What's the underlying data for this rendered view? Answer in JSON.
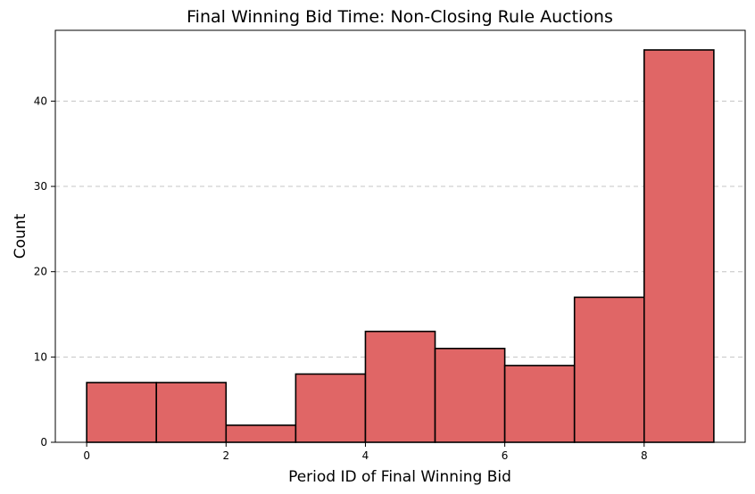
{
  "chart_data": {
    "type": "bar",
    "title": "Final Winning Bid Time: Non-Closing Rule Auctions",
    "xlabel": "Period ID of Final Winning Bid",
    "ylabel": "Count",
    "bins": [
      {
        "x0": 0,
        "x1": 1,
        "count": 7
      },
      {
        "x0": 1,
        "x1": 2,
        "count": 7
      },
      {
        "x0": 2,
        "x1": 3,
        "count": 2
      },
      {
        "x0": 3,
        "x1": 4,
        "count": 8
      },
      {
        "x0": 4,
        "x1": 5,
        "count": 13
      },
      {
        "x0": 5,
        "x1": 6,
        "count": 11
      },
      {
        "x0": 6,
        "x1": 7,
        "count": 9
      },
      {
        "x0": 7,
        "x1": 8,
        "count": 17
      },
      {
        "x0": 8,
        "x1": 9,
        "count": 46
      }
    ],
    "xlim": [
      -0.45,
      9.45
    ],
    "ylim": [
      0,
      48.3
    ],
    "xticks": [
      0,
      2,
      4,
      6,
      8
    ],
    "yticks": [
      0,
      10,
      20,
      30,
      40
    ],
    "grid": "y-dashed",
    "bar_color": "#e06666",
    "edge_color": "#000000"
  }
}
